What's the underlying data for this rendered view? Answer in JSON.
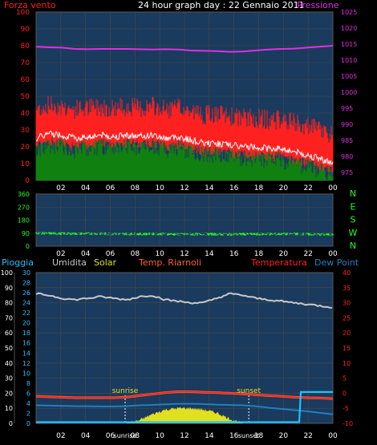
{
  "header": {
    "title": "24 hour graph day : 22 Gennaio 2011",
    "left_label": "Forza vento",
    "right_label": "Pressione"
  },
  "colors": {
    "background": "#000000",
    "plot_bg": "#1a3a5e",
    "grid": "#4a4a4a",
    "axis_text": "#ffffff",
    "wind": "#ff2020",
    "wind_avg": "#ffffff",
    "gust": "#108010",
    "pressure": "#e030e0",
    "direction": "#20ff20",
    "rain": "#20c0ff",
    "humidity": "#c8c8c8",
    "solar": "#e0e020",
    "temp_dew": "#ff6030",
    "temperature": "#ff2020",
    "dewpoint": "#2080c0",
    "cyan_axis": "#20c0ff",
    "pink_axis": "#e030e0"
  },
  "chart_data": [
    {
      "type": "line",
      "title": "24 hour graph day : 22 Gennaio 2011",
      "x_ticks": [
        "02",
        "04",
        "06",
        "08",
        "10",
        "12",
        "14",
        "16",
        "18",
        "20",
        "22",
        "00"
      ],
      "y_left": {
        "label": "Forza vento",
        "ticks": [
          "0",
          "10",
          "20",
          "30",
          "40",
          "50",
          "60",
          "70",
          "80",
          "90",
          "100"
        ],
        "range": [
          0,
          100
        ]
      },
      "y_right": {
        "label": "Pressione",
        "ticks": [
          "975",
          "980",
          "985",
          "990",
          "995",
          "1000",
          "1005",
          "1010",
          "1015",
          "1020",
          "1025"
        ],
        "range": [
          972.5,
          1025
        ]
      },
      "grid": true,
      "series": [
        {
          "name": "Forza vento",
          "axis": "left",
          "values": [
            33,
            36,
            35,
            33,
            34,
            35,
            34,
            35,
            34,
            35,
            33,
            34,
            32,
            30,
            30,
            29,
            28,
            28,
            27,
            27,
            25,
            23,
            21,
            18
          ]
        },
        {
          "name": "Pressione",
          "axis": "right",
          "values": [
            1014.2,
            1014.0,
            1013.9,
            1013.5,
            1013.4,
            1013.5,
            1013.5,
            1013.5,
            1013.4,
            1013.3,
            1013.4,
            1013.3,
            1013.0,
            1012.9,
            1012.8,
            1012.6,
            1012.7,
            1013.0,
            1013.3,
            1013.5,
            1013.6,
            1013.9,
            1014.2,
            1014.5
          ]
        }
      ]
    },
    {
      "type": "line",
      "x_ticks": [
        "02",
        "04",
        "06",
        "08",
        "10",
        "12",
        "14",
        "16",
        "18",
        "20",
        "22",
        "00"
      ],
      "y_left": {
        "ticks": [
          "0",
          "90",
          "180",
          "270",
          "360"
        ],
        "range": [
          0,
          360
        ]
      },
      "y_right": {
        "ticks": [
          "N",
          "W",
          "S",
          "E",
          "N"
        ]
      },
      "grid": true,
      "series": [
        {
          "name": "Direzione",
          "values": [
            90,
            88,
            87,
            86,
            87,
            86,
            84,
            85,
            83,
            85,
            84,
            82,
            82,
            83,
            82,
            81,
            83,
            82,
            84,
            83,
            85,
            82,
            80,
            80
          ]
        }
      ]
    },
    {
      "type": "line",
      "legend": [
        "Pioggia",
        "Umidita",
        "Solar",
        "Temp. Riarnoli",
        "Temperatura",
        "Dew Point"
      ],
      "x_ticks": [
        "02",
        "04",
        "06",
        "sunrise",
        "08",
        "10",
        "12",
        "14",
        "16",
        "sunset",
        "18",
        "20",
        "22",
        "00"
      ],
      "y_left_outer": {
        "label": "Pioggia",
        "ticks": [
          "0",
          "10",
          "20",
          "30",
          "40",
          "50",
          "60",
          "70",
          "80",
          "90",
          "100"
        ],
        "range": [
          0,
          100
        ]
      },
      "y_left_inner": {
        "ticks": [
          "0",
          "2",
          "4",
          "6",
          "8",
          "10",
          "12",
          "14",
          "16",
          "18",
          "20",
          "22",
          "24",
          "26",
          "28",
          "30"
        ],
        "range": [
          0,
          30
        ]
      },
      "y_right": {
        "label": "Temperatura",
        "ticks": [
          "-10",
          "-5",
          "0",
          "5",
          "10",
          "15",
          "20",
          "25",
          "30",
          "35",
          "40"
        ],
        "range": [
          -10,
          40
        ]
      },
      "annotations": [
        "sunrise",
        "sunset"
      ],
      "grid": true,
      "series": [
        {
          "name": "Umidita",
          "axis": "outer",
          "values": [
            86,
            85,
            83,
            82,
            83,
            84,
            83,
            82,
            84,
            85,
            82,
            81,
            80,
            80,
            83,
            86,
            85,
            83,
            82,
            81,
            80,
            79,
            78,
            77
          ]
        },
        {
          "name": "Temperatura",
          "axis": "right",
          "values": [
            -1.0,
            -1.2,
            -1.3,
            -1.5,
            -1.5,
            -1.5,
            -1.5,
            -1.3,
            -0.8,
            -0.3,
            0.2,
            0.5,
            0.5,
            0.3,
            0.2,
            0.0,
            -0.2,
            -0.5,
            -0.8,
            -1.0,
            -1.3,
            -1.5,
            -1.6,
            -1.8
          ]
        },
        {
          "name": "Dew Point",
          "axis": "right",
          "values": [
            -4.0,
            -4.1,
            -4.2,
            -4.3,
            -4.3,
            -4.4,
            -4.4,
            -4.3,
            -4.0,
            -3.9,
            -3.7,
            -3.5,
            -3.5,
            -3.6,
            -3.8,
            -3.9,
            -4.0,
            -4.3,
            -4.8,
            -5.2,
            -5.6,
            -6.0,
            -6.5,
            -7.0
          ]
        },
        {
          "name": "Solar",
          "axis": "outer",
          "values": [
            0,
            0,
            0,
            0,
            0,
            0,
            0,
            0,
            2,
            6,
            9,
            10,
            10,
            9,
            7,
            3,
            0,
            0,
            0,
            0,
            0,
            0,
            0,
            0
          ]
        },
        {
          "name": "Pioggia",
          "axis": "outer",
          "values": [
            0,
            0,
            0,
            0,
            0,
            0,
            0,
            0,
            0,
            0,
            0,
            0,
            0,
            0,
            0,
            0,
            0,
            0,
            0,
            0,
            0,
            1,
            1,
            1
          ]
        }
      ]
    }
  ]
}
